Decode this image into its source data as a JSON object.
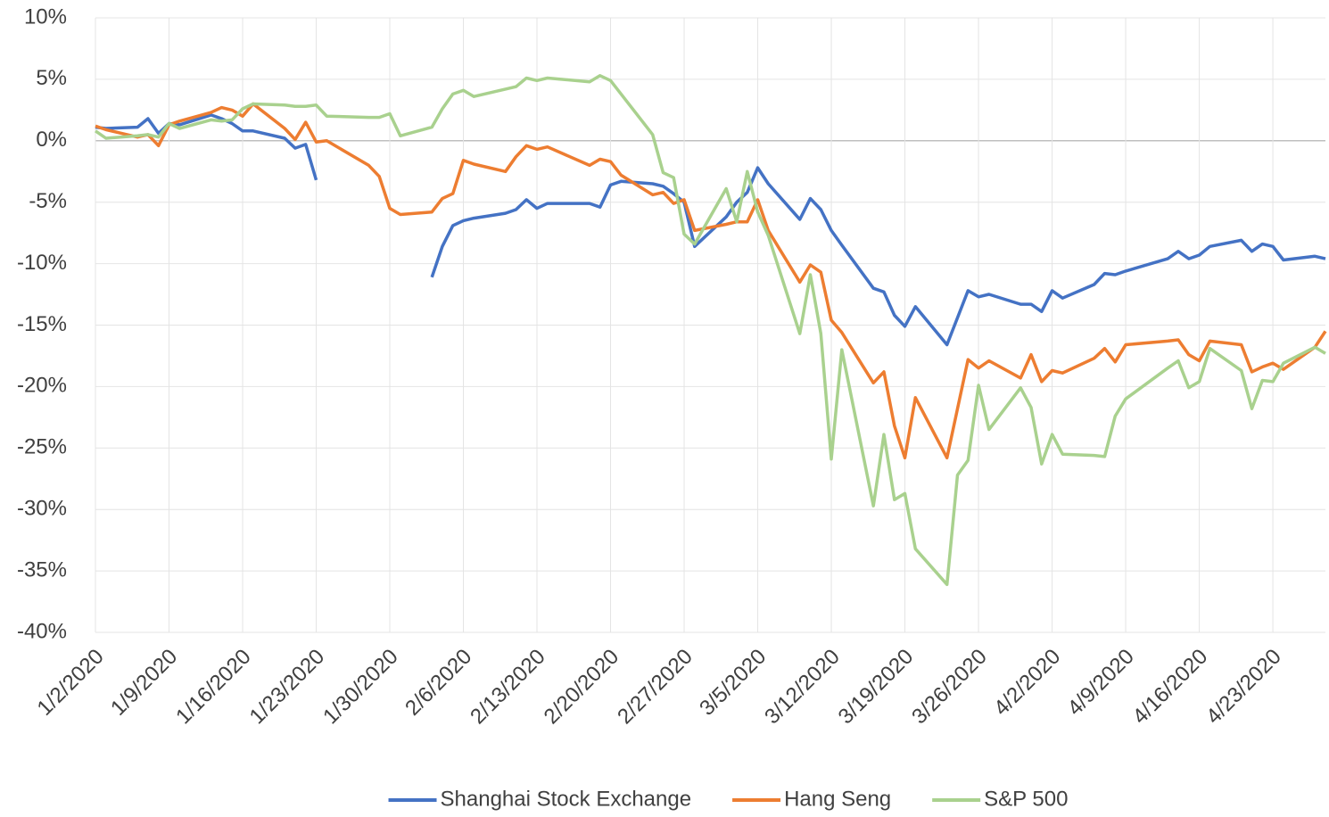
{
  "chart_data": {
    "type": "line",
    "x": [
      "1/2/2020",
      "1/3/2020",
      "1/6/2020",
      "1/7/2020",
      "1/8/2020",
      "1/9/2020",
      "1/10/2020",
      "1/13/2020",
      "1/14/2020",
      "1/15/2020",
      "1/16/2020",
      "1/17/2020",
      "1/20/2020",
      "1/21/2020",
      "1/22/2020",
      "1/23/2020",
      "1/24/2020",
      "1/28/2020",
      "1/29/2020",
      "1/30/2020",
      "1/31/2020",
      "2/3/2020",
      "2/4/2020",
      "2/5/2020",
      "2/6/2020",
      "2/7/2020",
      "2/10/2020",
      "2/11/2020",
      "2/12/2020",
      "2/13/2020",
      "2/14/2020",
      "2/18/2020",
      "2/19/2020",
      "2/20/2020",
      "2/21/2020",
      "2/24/2020",
      "2/25/2020",
      "2/26/2020",
      "2/27/2020",
      "2/28/2020",
      "3/2/2020",
      "3/3/2020",
      "3/4/2020",
      "3/5/2020",
      "3/6/2020",
      "3/9/2020",
      "3/10/2020",
      "3/11/2020",
      "3/12/2020",
      "3/13/2020",
      "3/16/2020",
      "3/17/2020",
      "3/18/2020",
      "3/19/2020",
      "3/20/2020",
      "3/23/2020",
      "3/24/2020",
      "3/25/2020",
      "3/26/2020",
      "3/27/2020",
      "3/30/2020",
      "3/31/2020",
      "4/1/2020",
      "4/2/2020",
      "4/3/2020",
      "4/6/2020",
      "4/7/2020",
      "4/8/2020",
      "4/9/2020",
      "4/13/2020",
      "4/14/2020",
      "4/15/2020",
      "4/16/2020",
      "4/17/2020",
      "4/20/2020",
      "4/21/2020",
      "4/22/2020",
      "4/23/2020",
      "4/24/2020",
      "4/27/2020",
      "4/28/2020"
    ],
    "series": [
      {
        "name": "Shanghai Stock Exchange",
        "color": "#4472c4",
        "values": [
          1.1,
          1.0,
          1.1,
          1.8,
          0.6,
          1.4,
          1.3,
          2.1,
          1.8,
          1.4,
          0.8,
          0.8,
          0.2,
          -0.6,
          -0.3,
          -3.2,
          null,
          null,
          null,
          null,
          null,
          -11.1,
          -8.6,
          -6.9,
          -6.5,
          -6.3,
          -5.9,
          -5.6,
          -4.8,
          -5.5,
          -5.1,
          -5.1,
          -5.4,
          -3.6,
          -3.3,
          -3.5,
          -3.7,
          -4.3,
          -5.0,
          -8.6,
          -6.2,
          -5.0,
          -4.2,
          -2.2,
          -3.5,
          -6.4,
          -4.7,
          -5.6,
          -7.3,
          -8.5,
          -12.0,
          -12.3,
          -14.2,
          -15.1,
          -13.5,
          -16.6,
          -14.4,
          -12.2,
          -12.7,
          -12.5,
          -13.3,
          -13.3,
          -13.9,
          -12.2,
          -12.8,
          -11.7,
          -10.8,
          -10.9,
          -10.6,
          -9.6,
          -9.0,
          -9.6,
          -9.3,
          -8.6,
          -8.1,
          -9.0,
          -8.4,
          -8.6,
          -9.7,
          -9.4,
          -9.6
        ]
      },
      {
        "name": "Hang Seng",
        "color": "#ed7d31",
        "values": [
          1.2,
          0.9,
          0.3,
          0.5,
          -0.4,
          1.3,
          1.6,
          2.3,
          2.7,
          2.5,
          2.0,
          3.0,
          1.0,
          0.1,
          1.5,
          -0.1,
          0.0,
          -2.0,
          -2.9,
          -5.5,
          -6.0,
          -5.8,
          -4.7,
          -4.3,
          -1.6,
          -1.9,
          -2.5,
          -1.3,
          -0.4,
          -0.7,
          -0.5,
          -2.0,
          -1.5,
          -1.7,
          -2.8,
          -4.4,
          -4.2,
          -5.1,
          -4.8,
          -7.3,
          -6.8,
          -6.6,
          -6.6,
          -4.8,
          -7.3,
          -11.5,
          -10.1,
          -10.7,
          -14.6,
          -15.6,
          -19.7,
          -18.8,
          -23.2,
          -25.8,
          -20.9,
          -25.8,
          -21.8,
          -17.8,
          -18.5,
          -17.9,
          -19.3,
          -17.4,
          -19.6,
          -18.7,
          -18.9,
          -17.7,
          -16.9,
          -18.0,
          -16.6,
          -16.3,
          -16.2,
          -17.4,
          -17.9,
          -16.3,
          -16.6,
          -18.8,
          -18.4,
          -18.1,
          -18.6,
          -16.8,
          -15.5
        ]
      },
      {
        "name": "S&P 500",
        "color": "#a9d18e",
        "values": [
          0.8,
          0.2,
          0.4,
          0.5,
          0.3,
          1.4,
          1.0,
          1.7,
          1.6,
          1.7,
          2.6,
          3.0,
          2.9,
          2.8,
          2.8,
          2.9,
          2.0,
          1.9,
          1.9,
          2.2,
          0.4,
          1.1,
          2.6,
          3.8,
          4.1,
          3.6,
          4.2,
          4.4,
          5.1,
          4.9,
          5.1,
          4.8,
          5.3,
          4.9,
          3.8,
          0.5,
          -2.6,
          -3.0,
          -7.6,
          -8.4,
          -3.9,
          -6.6,
          -2.5,
          -5.8,
          -7.7,
          -15.7,
          -10.9,
          -15.7,
          -25.9,
          -17.0,
          -29.7,
          -23.9,
          -29.2,
          -28.7,
          -33.2,
          -36.1,
          -27.2,
          -26.0,
          -19.9,
          -23.5,
          -20.1,
          -21.7,
          -26.3,
          -23.9,
          -25.5,
          -25.6,
          -25.7,
          -22.4,
          -21.0,
          -18.5,
          -17.9,
          -20.1,
          -19.6,
          -16.9,
          -18.7,
          -21.8,
          -19.5,
          -19.6,
          -18.1,
          -16.8,
          -17.3
        ]
      }
    ],
    "xlim": [
      "1/2/2020",
      "4/28/2020"
    ],
    "xticks": [
      "1/2/2020",
      "1/9/2020",
      "1/16/2020",
      "1/23/2020",
      "1/30/2020",
      "2/6/2020",
      "2/13/2020",
      "2/20/2020",
      "2/27/2020",
      "3/5/2020",
      "3/12/2020",
      "3/19/2020",
      "3/26/2020",
      "4/2/2020",
      "4/9/2020",
      "4/16/2020",
      "4/23/2020"
    ],
    "ylim": [
      -40,
      10
    ],
    "yticks": [
      {
        "value": -40,
        "label": "-40%"
      },
      {
        "value": -35,
        "label": "-35%"
      },
      {
        "value": -30,
        "label": "-30%"
      },
      {
        "value": -25,
        "label": "-25%"
      },
      {
        "value": -20,
        "label": "-20%"
      },
      {
        "value": -15,
        "label": "-15%"
      },
      {
        "value": -10,
        "label": "-10%"
      },
      {
        "value": -5,
        "label": "-5%"
      },
      {
        "value": 0,
        "label": "0%"
      },
      {
        "value": 5,
        "label": "5%"
      },
      {
        "value": 10,
        "label": "10%"
      }
    ],
    "grid": true,
    "legend": "bottom"
  }
}
